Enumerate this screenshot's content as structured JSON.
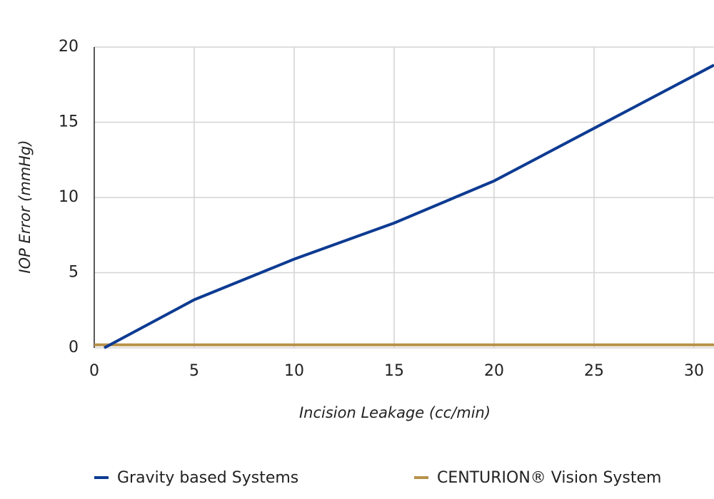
{
  "chart_data": {
    "type": "line",
    "x_label": "Incision Leakage (cc/min)",
    "y_label": "IOP Error (mmHg)",
    "xlim": [
      0,
      31
    ],
    "xticks": [
      0,
      5,
      10,
      15,
      20,
      25,
      30
    ],
    "ylim": [
      0,
      20
    ],
    "yticks": [
      0,
      5,
      10,
      15,
      20
    ],
    "grid": true,
    "series": [
      {
        "name": "Gravity based Systems",
        "color": "#0d3b92",
        "x": [
          0.5,
          5,
          10,
          15,
          20,
          25,
          31
        ],
        "values": [
          0,
          3.2,
          5.9,
          8.3,
          11.1,
          14.6,
          18.8
        ]
      },
      {
        "name": "CENTURION® Vision System",
        "color": "#b8924a",
        "x": [
          0,
          31
        ],
        "values": [
          0.2,
          0.2
        ]
      }
    ]
  }
}
